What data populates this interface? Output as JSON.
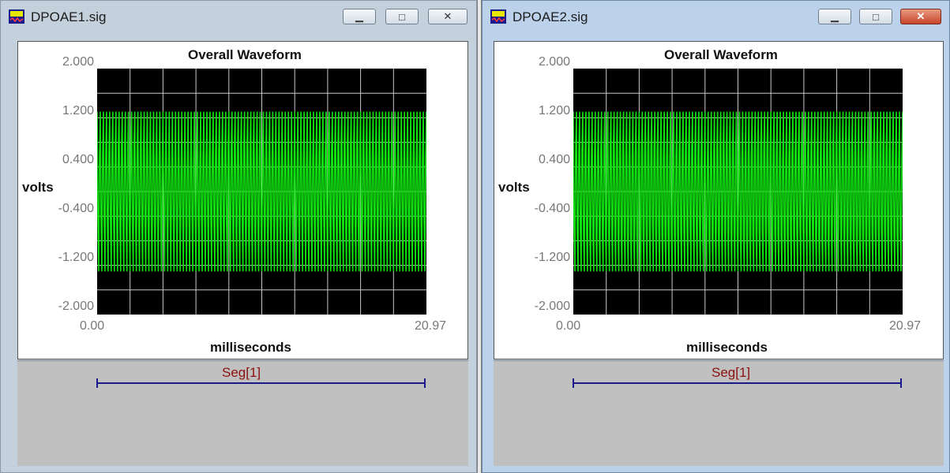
{
  "windows": [
    {
      "title": "DPOAE1.sig",
      "buttons": {
        "minimize": "▁",
        "maximize": "□",
        "close": "✕"
      },
      "chart": {
        "title": "Overall Waveform",
        "ylabel": "volts",
        "xlabel": "milliseconds",
        "yticks": [
          "2.000",
          "1.200",
          "0.400",
          "-0.400",
          "-1.200",
          "-2.000"
        ],
        "xticks": [
          "0.00",
          "20.97"
        ],
        "segment_label": "Seg[1]"
      }
    },
    {
      "title": "DPOAE2.sig",
      "buttons": {
        "minimize": "▁",
        "maximize": "□",
        "close": "✕"
      },
      "chart": {
        "title": "Overall Waveform",
        "ylabel": "volts",
        "xlabel": "milliseconds",
        "yticks": [
          "2.000",
          "1.200",
          "0.400",
          "-0.400",
          "-1.200",
          "-2.000"
        ],
        "xticks": [
          "0.00",
          "20.97"
        ],
        "segment_label": "Seg[1]"
      }
    }
  ],
  "colors": {
    "trace": "#11e311",
    "plot_bg": "#000000",
    "grid": "#c8c8c8",
    "segment": "#1a1a8a",
    "segment_label": "#8b1010"
  },
  "chart_data": [
    {
      "type": "line",
      "title": "Overall Waveform",
      "xlabel": "milliseconds",
      "ylabel": "volts",
      "xlim": [
        0.0,
        20.97
      ],
      "ylim": [
        -2.0,
        2.0
      ],
      "yticks": [
        2.0,
        1.2,
        0.4,
        -0.4,
        -1.2,
        -2.0
      ],
      "grid": true,
      "series": [
        {
          "peak_amplitude": 1.3,
          "envelope_beat_cycles": 3,
          "envelope_min_amplitude": 0.35
        }
      ]
    },
    {
      "type": "line",
      "title": "Overall Waveform",
      "xlabel": "milliseconds",
      "ylabel": "volts",
      "xlim": [
        0.0,
        20.97
      ],
      "ylim": [
        -2.0,
        2.0
      ],
      "yticks": [
        2.0,
        1.2,
        0.4,
        -0.4,
        -1.2,
        -2.0
      ],
      "grid": true,
      "series": [
        {
          "peak_amplitude": 1.3,
          "envelope_beat_cycles": 0,
          "envelope_min_amplitude": 1.3
        }
      ]
    }
  ]
}
